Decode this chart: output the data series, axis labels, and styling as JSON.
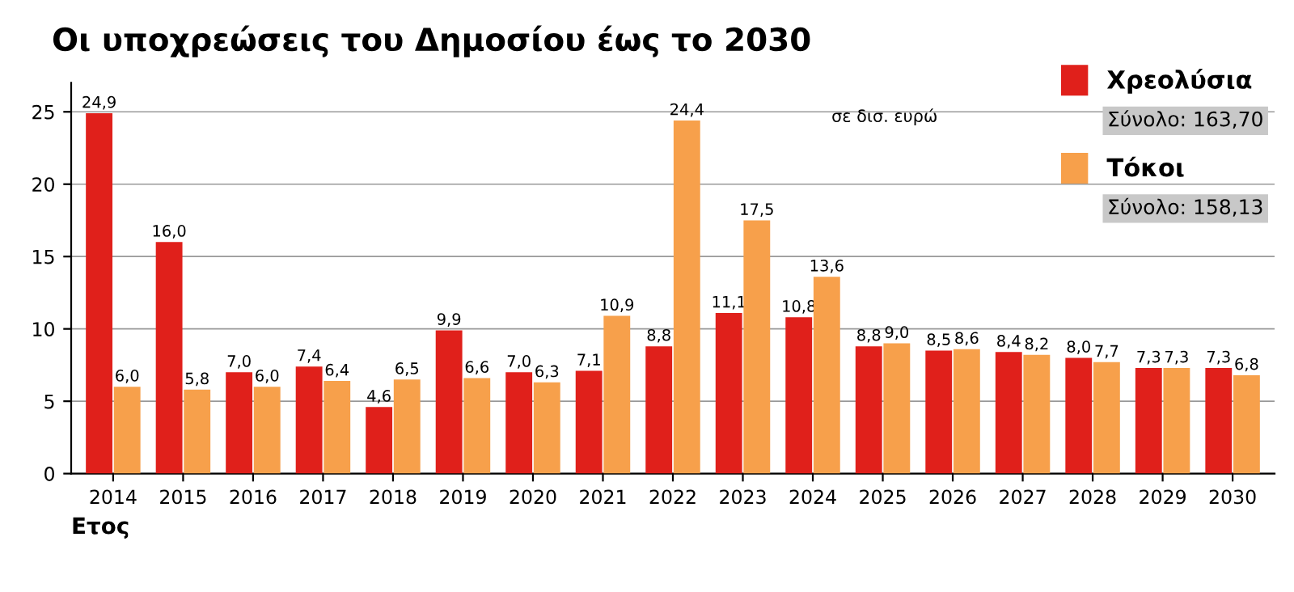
{
  "chart_data": {
    "type": "bar",
    "title": "Οι υποχρεώσεις του Δημοσίου έως το 2030",
    "xlabel": "Ετος",
    "categories": [
      "2014",
      "2015",
      "2016",
      "2017",
      "2018",
      "2019",
      "2020",
      "2021",
      "2022",
      "2023",
      "2024",
      "2025",
      "2026",
      "2027",
      "2028",
      "2029",
      "2030"
    ],
    "series": [
      {
        "name": "Χρεολύσια",
        "color": "#e0201b",
        "values": [
          24.9,
          16.0,
          7.0,
          7.4,
          4.6,
          9.9,
          7.0,
          7.1,
          8.8,
          11.1,
          10.8,
          8.8,
          8.5,
          8.4,
          8.0,
          7.3,
          7.3
        ],
        "value_labels": [
          "24,9",
          "16,0",
          "7,0",
          "7,4",
          "4,6",
          "9,9",
          "7,0",
          "7,1",
          "8,8",
          "11,1",
          "10,8",
          "8,8",
          "8,5",
          "8,4",
          "8,0",
          "7,3",
          "7,3"
        ]
      },
      {
        "name": "Τόκοι",
        "color": "#f7a04b",
        "values": [
          6.0,
          5.8,
          6.0,
          6.4,
          6.5,
          6.6,
          6.3,
          10.9,
          24.4,
          17.5,
          13.6,
          9.0,
          8.6,
          8.2,
          7.7,
          7.3,
          6.8
        ],
        "value_labels": [
          "6,0",
          "5,8",
          "6,0",
          "6,4",
          "6,5",
          "6,6",
          "6,3",
          "10,9",
          "24,4",
          "17,5",
          "13,6",
          "9,0",
          "8,6",
          "8,2",
          "7,7",
          "7,3",
          "6,8"
        ]
      }
    ],
    "annotations": [
      "σε δισ. ευρώ",
      "Σύνολο: 163,70",
      "Σύνολο: 158,13"
    ],
    "ylim": [
      0,
      27
    ],
    "yticks": [
      0,
      5,
      10,
      15,
      20,
      25
    ],
    "grid": "y",
    "legend": "top right"
  }
}
